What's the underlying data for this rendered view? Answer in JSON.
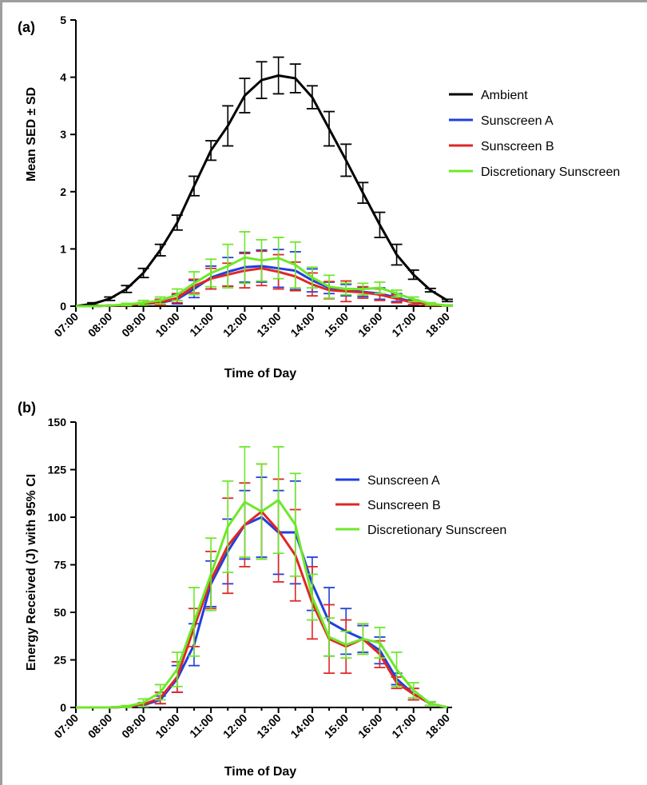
{
  "chart_data": [
    {
      "panel_label": "(a)",
      "type": "line",
      "xlabel": "Time of Day",
      "ylabel": "Mean SED ± SD",
      "ylim": [
        0,
        5
      ],
      "yticks": [
        "0",
        "1",
        "2",
        "3",
        "4",
        "5"
      ],
      "xticks": [
        "07:00",
        "08:00",
        "09:00",
        "10:00",
        "11:00",
        "12:00",
        "13:00",
        "14:00",
        "15:00",
        "16:00",
        "17:00",
        "18:00"
      ],
      "x": [
        7,
        7.5,
        8,
        8.5,
        9,
        9.5,
        10,
        10.5,
        11,
        11.5,
        12,
        12.5,
        13,
        13.5,
        14,
        14.5,
        15,
        15.5,
        16,
        16.5,
        17,
        17.5,
        18
      ],
      "legend_position": "right",
      "series": [
        {
          "name": "Ambient",
          "color": "#000000",
          "values": [
            0,
            0.04,
            0.13,
            0.3,
            0.58,
            0.98,
            1.46,
            2.1,
            2.72,
            3.15,
            3.68,
            3.95,
            4.03,
            3.98,
            3.65,
            3.1,
            2.55,
            1.98,
            1.42,
            0.9,
            0.55,
            0.28,
            0.1
          ],
          "err": [
            0,
            0.02,
            0.03,
            0.06,
            0.08,
            0.1,
            0.13,
            0.17,
            0.17,
            0.35,
            0.3,
            0.32,
            0.32,
            0.25,
            0.2,
            0.3,
            0.28,
            0.18,
            0.22,
            0.18,
            0.08,
            0.03,
            0.02
          ]
        },
        {
          "name": "Sunscreen A",
          "color": "#1f3fe0",
          "values": [
            0,
            0,
            0.01,
            0.02,
            0.04,
            0.06,
            0.12,
            0.3,
            0.5,
            0.6,
            0.68,
            0.7,
            0.66,
            0.62,
            0.45,
            0.32,
            0.28,
            0.25,
            0.22,
            0.15,
            0.07,
            0.03,
            0.01
          ],
          "err": [
            0,
            0,
            0,
            0.01,
            0.02,
            0.04,
            0.08,
            0.15,
            0.2,
            0.25,
            0.26,
            0.28,
            0.33,
            0.33,
            0.2,
            0.1,
            0.1,
            0.08,
            0.1,
            0.07,
            0.04,
            0.02,
            0.01
          ]
        },
        {
          "name": "Sunscreen B",
          "color": "#e02626",
          "values": [
            0,
            0,
            0.01,
            0.02,
            0.04,
            0.07,
            0.14,
            0.35,
            0.48,
            0.55,
            0.62,
            0.66,
            0.6,
            0.52,
            0.38,
            0.28,
            0.26,
            0.24,
            0.2,
            0.13,
            0.06,
            0.02,
            0.01
          ],
          "err": [
            0,
            0,
            0,
            0.01,
            0.02,
            0.05,
            0.08,
            0.12,
            0.18,
            0.2,
            0.3,
            0.3,
            0.3,
            0.25,
            0.2,
            0.15,
            0.18,
            0.1,
            0.1,
            0.07,
            0.03,
            0.01,
            0.01
          ]
        },
        {
          "name": "Discretionary Sunscreen",
          "color": "#6ee82a",
          "values": [
            0,
            0,
            0.01,
            0.03,
            0.06,
            0.1,
            0.2,
            0.4,
            0.58,
            0.7,
            0.85,
            0.8,
            0.84,
            0.72,
            0.5,
            0.34,
            0.3,
            0.3,
            0.32,
            0.22,
            0.12,
            0.04,
            0.01
          ],
          "err": [
            0,
            0,
            0,
            0.02,
            0.04,
            0.06,
            0.1,
            0.2,
            0.24,
            0.38,
            0.45,
            0.36,
            0.36,
            0.4,
            0.18,
            0.2,
            0.1,
            0.1,
            0.1,
            0.06,
            0.04,
            0.02,
            0.01
          ]
        }
      ]
    },
    {
      "panel_label": "(b)",
      "type": "line",
      "xlabel": "Time of Day",
      "ylabel": "Energy Received (J) with 95% CI",
      "ylim": [
        0,
        150
      ],
      "yticks": [
        "0",
        "25",
        "50",
        "75",
        "100",
        "125",
        "150"
      ],
      "xticks": [
        "07:00",
        "08:00",
        "09:00",
        "10:00",
        "11:00",
        "12:00",
        "13:00",
        "14:00",
        "15:00",
        "16:00",
        "17:00",
        "18:00"
      ],
      "x": [
        7,
        7.5,
        8,
        8.5,
        9,
        9.5,
        10,
        10.5,
        11,
        11.5,
        12,
        12.5,
        13,
        13.5,
        14,
        14.5,
        15,
        15.5,
        16,
        16.5,
        17,
        17.5,
        18
      ],
      "legend_position": "right",
      "series": [
        {
          "name": "Sunscreen A",
          "color": "#1f3fe0",
          "values": [
            0,
            0,
            0,
            0.3,
            1.2,
            4,
            15,
            33,
            65,
            82,
            96,
            100,
            92,
            92,
            65,
            45,
            40,
            36,
            30,
            15,
            7,
            2,
            0
          ],
          "err": [
            0,
            0,
            0,
            0.3,
            1,
            2,
            7,
            11,
            12,
            17,
            18,
            21,
            22,
            27,
            14,
            18,
            12,
            7,
            7,
            3,
            3,
            1,
            0
          ]
        },
        {
          "name": "Sunscreen B",
          "color": "#e02626",
          "values": [
            0,
            0,
            0,
            0.3,
            1.5,
            5,
            16,
            42,
            67,
            85,
            96,
            103,
            93,
            80,
            55,
            36,
            32,
            36,
            28,
            13,
            7,
            2,
            0
          ],
          "err": [
            0,
            0,
            0,
            0.3,
            1,
            3,
            8,
            10,
            15,
            25,
            22,
            25,
            27,
            24,
            19,
            18,
            14,
            8,
            7,
            3,
            3,
            1,
            0
          ]
        },
        {
          "name": "Discretionary Sunscreen",
          "color": "#6ee82a",
          "values": [
            0,
            0,
            0,
            0.5,
            2.5,
            8,
            20,
            45,
            70,
            95,
            108,
            103,
            109,
            96,
            58,
            37,
            33,
            36,
            34,
            20,
            9,
            2,
            0
          ],
          "err": [
            0,
            0,
            0,
            0.5,
            2,
            4,
            9,
            18,
            19,
            24,
            29,
            25,
            28,
            27,
            12,
            10,
            7,
            8,
            8,
            9,
            4,
            1,
            0
          ]
        }
      ]
    }
  ]
}
